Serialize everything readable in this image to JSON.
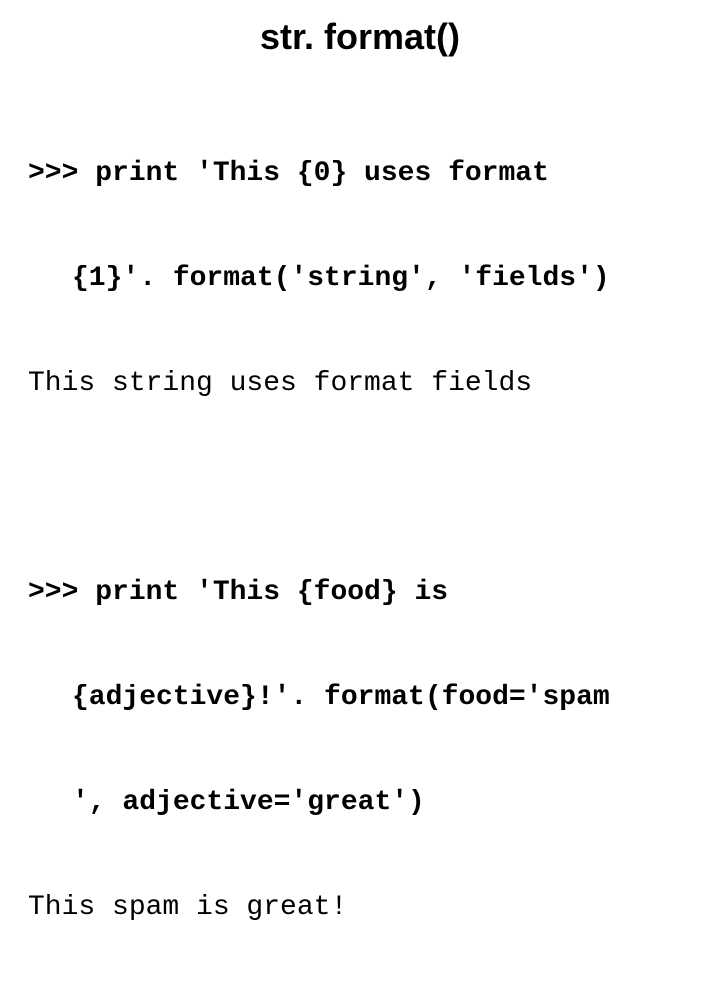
{
  "title": "str. format()",
  "example1": {
    "input_line1": ">>> print 'This {0} uses format",
    "input_line2": "{1}'. format('string', 'fields')",
    "output": "This string uses format fields"
  },
  "example2": {
    "input_line1": ">>> print 'This {food} is",
    "input_line2": "{adjective}!'. format(food='spam",
    "input_line3": "', adjective='great')",
    "output": "This spam is great!"
  },
  "style": {
    "background_color": "#ffffff",
    "text_color": "#000000",
    "title_fontsize": 36,
    "body_fontsize": 28,
    "mono_font": "Courier New",
    "title_font": "Verdana"
  }
}
